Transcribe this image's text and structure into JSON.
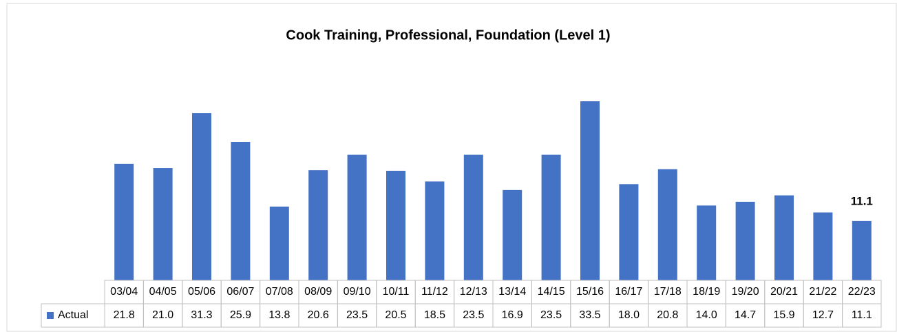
{
  "chart_data": {
    "type": "bar",
    "title": "Cook Training, Professional, Foundation (Level 1)",
    "categories": [
      "03/04",
      "04/05",
      "05/06",
      "06/07",
      "07/08",
      "08/09",
      "09/10",
      "10/11",
      "11/12",
      "12/13",
      "13/14",
      "14/15",
      "15/16",
      "16/17",
      "17/18",
      "18/19",
      "19/20",
      "20/21",
      "21/22",
      "22/23"
    ],
    "series": [
      {
        "name": "Actual",
        "color": "#4472c4",
        "values": [
          21.8,
          21,
          31.3,
          25.9,
          13.8,
          20.6,
          23.5,
          20.5,
          18.5,
          23.5,
          16.9,
          23.5,
          33.5,
          18,
          20.8,
          14,
          14.7,
          15.9,
          12.7,
          11.1
        ],
        "value_labels": [
          "21.8",
          "21.0",
          "31.3",
          "25.9",
          "13.8",
          "20.6",
          "23.5",
          "20.5",
          "18.5",
          "23.5",
          "16.9",
          "23.5",
          "33.5",
          "18.0",
          "20.8",
          "14.0",
          "14.7",
          "15.9",
          "12.7",
          "11.1"
        ]
      }
    ],
    "ylim": [
      0,
      35
    ]
  }
}
